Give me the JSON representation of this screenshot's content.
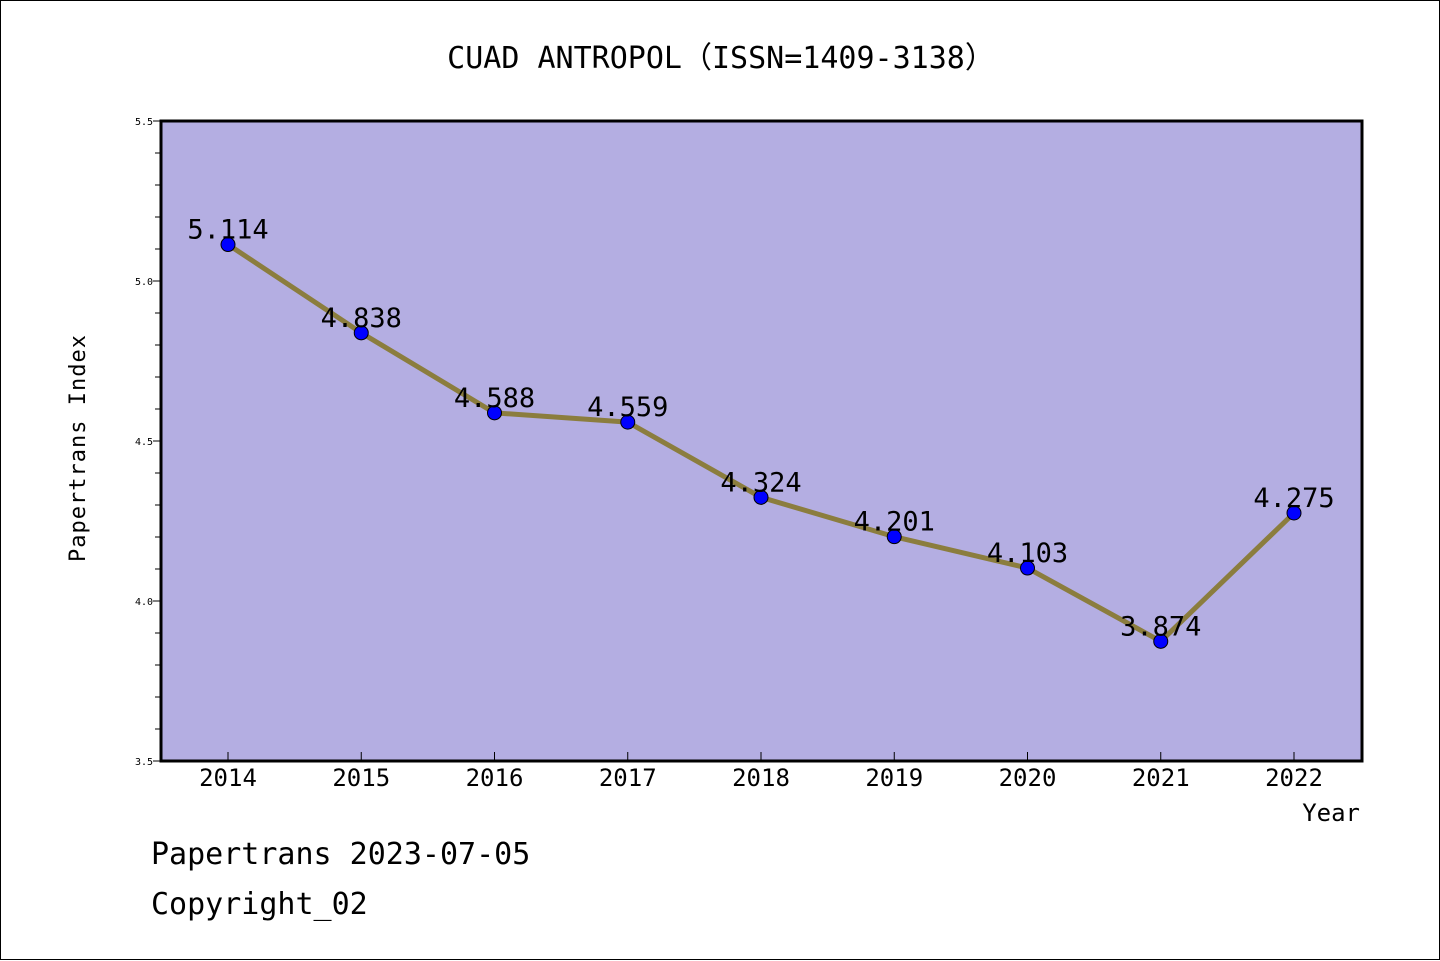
{
  "chart_data": {
    "type": "line",
    "title": "CUAD ANTROPOL（ISSN=1409-3138）",
    "xlabel": "Year",
    "ylabel": "Papertrans Index",
    "categories": [
      "2014",
      "2015",
      "2016",
      "2017",
      "2018",
      "2019",
      "2020",
      "2021",
      "2022"
    ],
    "values": [
      5.114,
      4.838,
      4.588,
      4.559,
      4.324,
      4.201,
      4.103,
      3.874,
      4.275
    ],
    "data_labels": [
      "5.114",
      "4.838",
      "4.588",
      "4.559",
      "4.324",
      "4.201",
      "4.103",
      "3.874",
      "4.275"
    ],
    "ylim": [
      3.5,
      5.5
    ],
    "yticks": [
      "3.5",
      "4.0",
      "4.5",
      "5.0",
      "5.5"
    ],
    "ytick_values": [
      3.5,
      4.0,
      4.5,
      5.0,
      5.5
    ],
    "grid": false,
    "colors": {
      "plot_background": "#b4aee2",
      "line": "#8b7d3e",
      "marker": "#0000ff"
    }
  },
  "footer": {
    "line1": "Papertrans 2023-07-05",
    "line2": "Copyright_02"
  }
}
